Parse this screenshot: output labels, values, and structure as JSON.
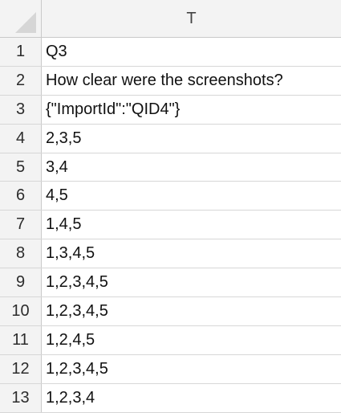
{
  "columns": [
    "T"
  ],
  "rows": [
    {
      "num": "1",
      "value": "Q3"
    },
    {
      "num": "2",
      "value": "How clear were the screenshots?"
    },
    {
      "num": "3",
      "value": "{\"ImportId\":\"QID4\"}"
    },
    {
      "num": "4",
      "value": "2,3,5"
    },
    {
      "num": "5",
      "value": "3,4"
    },
    {
      "num": "6",
      "value": "4,5"
    },
    {
      "num": "7",
      "value": "1,4,5"
    },
    {
      "num": "8",
      "value": "1,3,4,5"
    },
    {
      "num": "9",
      "value": "1,2,3,4,5"
    },
    {
      "num": "10",
      "value": "1,2,3,4,5"
    },
    {
      "num": "11",
      "value": "1,2,4,5"
    },
    {
      "num": "12",
      "value": "1,2,3,4,5"
    },
    {
      "num": "13",
      "value": "1,2,3,4"
    }
  ]
}
